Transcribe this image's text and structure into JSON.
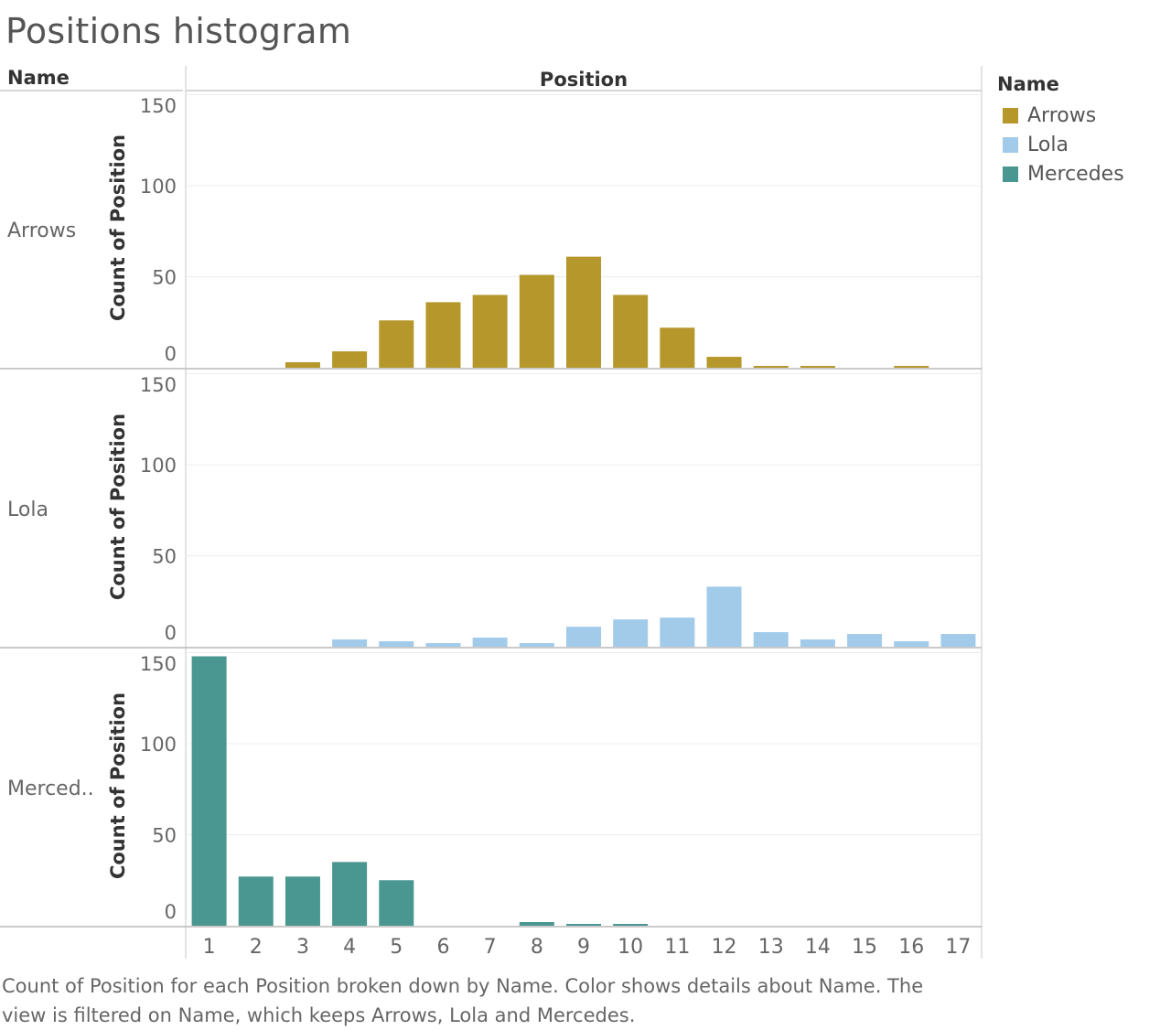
{
  "title": "Positions histogram",
  "caption": {
    "line1": "Count of Position for each Position broken down by Name.  Color shows details about Name. The",
    "line2": "view is filtered on Name, which keeps Arrows, Lola and Mercedes."
  },
  "legend": {
    "title": "Name",
    "items": [
      {
        "label": "Arrows",
        "color": "#b5972b"
      },
      {
        "label": "Lola",
        "color": "#a2cbea"
      },
      {
        "label": "Mercedes",
        "color": "#4a9690"
      }
    ]
  },
  "chart_data": {
    "type": "bar",
    "row_header": "Name",
    "column_header": "Position",
    "ylabel": "Count of Position",
    "ylim": [
      0,
      150
    ],
    "yticks": [
      0,
      50,
      100,
      150
    ],
    "grid": true,
    "legend_position": "right",
    "categories": [
      "1",
      "2",
      "3",
      "4",
      "5",
      "6",
      "7",
      "8",
      "9",
      "10",
      "11",
      "12",
      "13",
      "14",
      "15",
      "16",
      "17"
    ],
    "series": [
      {
        "name": "Arrows",
        "row_label": "Arrows",
        "color": "#b5972b",
        "values": [
          0,
          0,
          3,
          9,
          26,
          36,
          40,
          51,
          61,
          40,
          22,
          6,
          1,
          1,
          0,
          1,
          0
        ]
      },
      {
        "name": "Lola",
        "row_label": "Lola",
        "color": "#a2cbea",
        "values": [
          0,
          0,
          0,
          4,
          3,
          2,
          5,
          2,
          11,
          15,
          16,
          33,
          8,
          4,
          7,
          3,
          7
        ]
      },
      {
        "name": "Mercedes",
        "row_label": "Merced..",
        "color": "#4a9690",
        "values": [
          148,
          27,
          27,
          35,
          25,
          0,
          0,
          2,
          1,
          1,
          0,
          0,
          0,
          0,
          0,
          0,
          0
        ]
      }
    ]
  }
}
